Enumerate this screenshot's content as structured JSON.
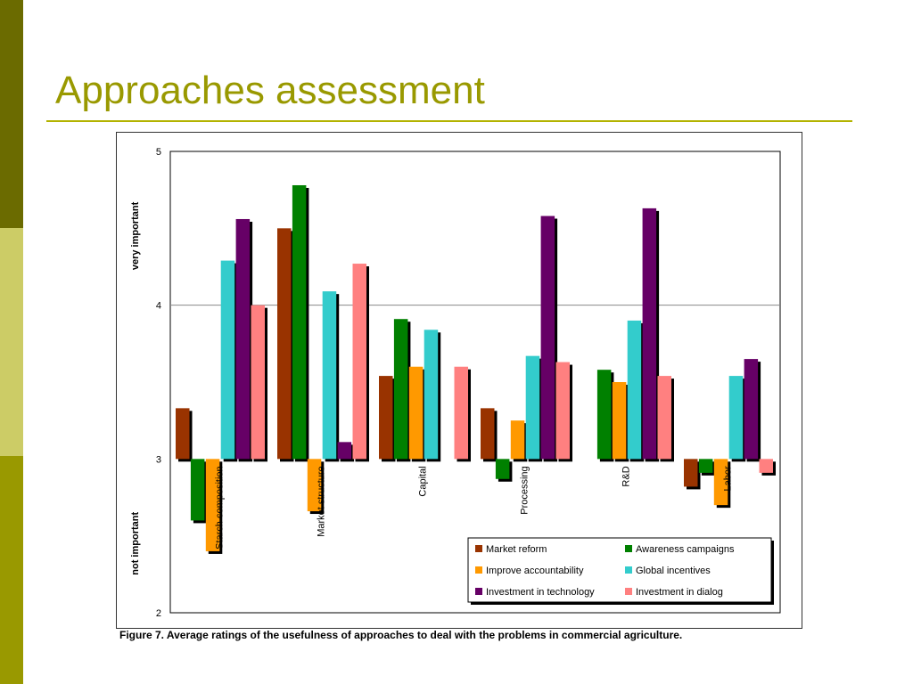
{
  "slide": {
    "title": "Approaches assessment",
    "caption": "Figure 7. Average ratings of the usefulness of approaches to deal with the problems in commercial agriculture.",
    "accent_colors": {
      "dark": "#6b6b00",
      "light": "#cccc66",
      "mid": "#999900",
      "title": "#999900"
    }
  },
  "chart_data": {
    "type": "bar",
    "categories": [
      "Starch composition",
      "Market structure",
      "Capital",
      "Processing",
      "R&D",
      "Labor"
    ],
    "ylim": [
      2,
      5
    ],
    "yticks": [
      "2",
      "3",
      "4",
      "5"
    ],
    "baseline": 3,
    "ylabel_top": "very important",
    "ylabel_bottom": "not important",
    "gridlines": [
      4
    ],
    "legend_position": "bottom-right",
    "series": [
      {
        "name": "Market reform",
        "color": "#993300",
        "values": [
          3.33,
          4.5,
          3.54,
          3.33,
          null,
          2.82
        ]
      },
      {
        "name": "Awareness campaigns",
        "color": "#008000",
        "values": [
          2.6,
          4.78,
          3.91,
          2.87,
          3.58,
          2.91
        ]
      },
      {
        "name": "Improve accountability",
        "color": "#ff9900",
        "values": [
          2.4,
          2.66,
          3.6,
          3.25,
          3.5,
          2.7
        ]
      },
      {
        "name": "Global incentives",
        "color": "#33cccc",
        "values": [
          4.29,
          4.09,
          3.84,
          3.67,
          3.9,
          3.54
        ]
      },
      {
        "name": "Investment in technology",
        "color": "#660066",
        "values": [
          4.56,
          3.11,
          null,
          4.58,
          4.63,
          3.65
        ]
      },
      {
        "name": "Investment in dialog",
        "color": "#ff8080",
        "values": [
          4.0,
          4.27,
          3.6,
          3.63,
          3.54,
          2.91
        ]
      }
    ]
  }
}
